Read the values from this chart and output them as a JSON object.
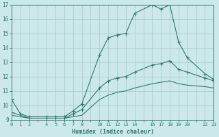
{
  "xlabel": "Humidex (Indice chaleur)",
  "ylabel": "",
  "bg_color": "#cce8e8",
  "grid_color": "#aacece",
  "line_color": "#2a7a6a",
  "xlim": [
    0,
    23
  ],
  "ylim": [
    9,
    17
  ],
  "x_all_ticks": [
    0,
    1,
    2,
    3,
    4,
    5,
    6,
    7,
    8,
    9,
    10,
    11,
    12,
    13,
    14,
    15,
    16,
    17,
    18,
    19,
    20,
    21,
    22,
    23
  ],
  "x_label_ticks": [
    0,
    1,
    2,
    4,
    5,
    6,
    7,
    8,
    10,
    11,
    12,
    13,
    14,
    16,
    17,
    18,
    19,
    20,
    22,
    23
  ],
  "yticks": [
    9,
    10,
    11,
    12,
    13,
    14,
    15,
    16,
    17
  ],
  "line1_x": [
    0,
    1,
    2,
    4,
    5,
    6,
    7,
    8,
    10,
    11,
    12,
    13,
    14,
    16,
    17,
    18,
    19,
    20,
    22,
    23
  ],
  "line1_y": [
    10.4,
    9.4,
    9.2,
    9.2,
    9.2,
    9.2,
    9.6,
    10.1,
    13.5,
    14.7,
    14.9,
    15.0,
    16.4,
    17.0,
    16.7,
    17.0,
    14.4,
    13.3,
    12.2,
    11.8
  ],
  "line2_x": [
    0,
    2,
    4,
    5,
    6,
    7,
    8,
    10,
    11,
    12,
    13,
    14,
    16,
    17,
    18,
    19,
    20,
    22,
    23
  ],
  "line2_y": [
    9.5,
    9.1,
    9.1,
    9.1,
    9.1,
    9.4,
    9.7,
    11.2,
    11.7,
    11.9,
    12.0,
    12.3,
    12.8,
    12.9,
    13.1,
    12.5,
    12.3,
    11.9,
    11.7
  ],
  "line3_x": [
    0,
    2,
    4,
    5,
    6,
    7,
    8,
    10,
    11,
    12,
    13,
    14,
    16,
    17,
    18,
    19,
    20,
    22,
    23
  ],
  "line3_y": [
    9.3,
    9.1,
    9.1,
    9.1,
    9.1,
    9.2,
    9.3,
    10.4,
    10.7,
    10.9,
    11.0,
    11.2,
    11.5,
    11.6,
    11.7,
    11.5,
    11.4,
    11.3,
    11.2
  ]
}
